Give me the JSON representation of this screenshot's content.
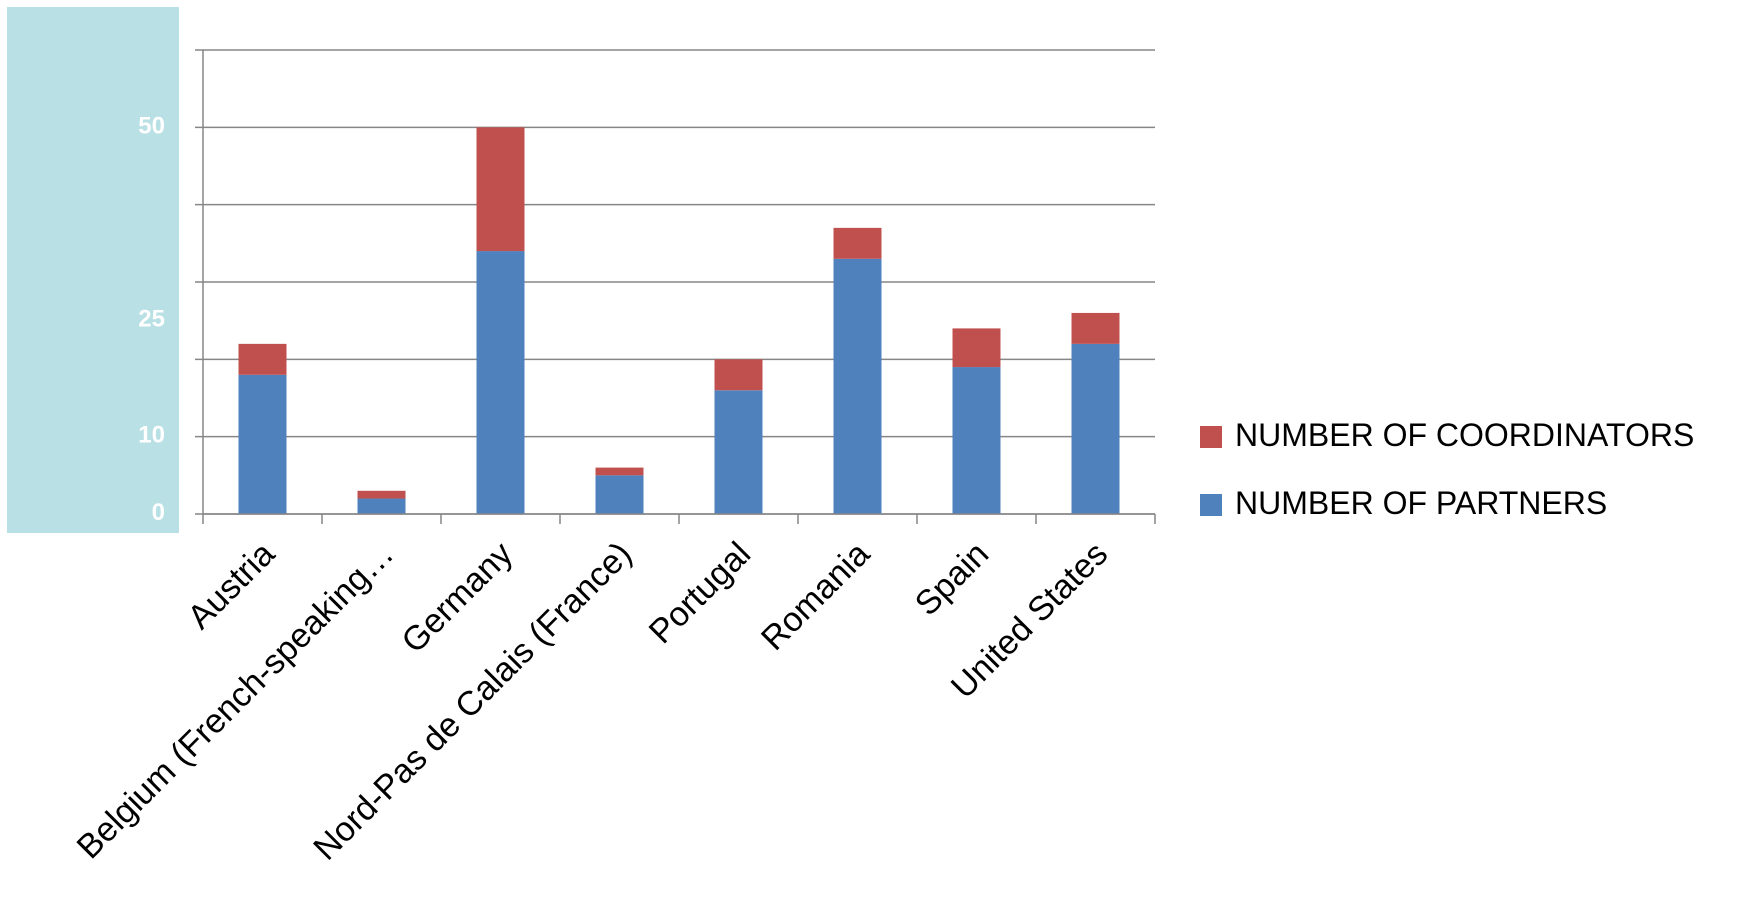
{
  "chart_data": {
    "type": "bar",
    "stacked": true,
    "categories": [
      "Austria",
      "Belgium (French-speaking…",
      "Germany",
      "Nord-Pas de Calais (France)",
      "Portugal",
      "Romania",
      "Spain",
      "United States"
    ],
    "series": [
      {
        "name": "NUMBER OF PARTNERS",
        "color": "#4f81bd",
        "values": [
          18,
          2,
          34,
          5,
          16,
          33,
          19,
          22
        ]
      },
      {
        "name": "NUMBER OF COORDINATORS",
        "color": "#c0504d",
        "values": [
          4,
          1,
          16,
          1,
          4,
          4,
          5,
          4
        ]
      }
    ],
    "ylim": [
      0,
      60
    ],
    "yticks": [
      "0",
      "10",
      "25",
      "50"
    ],
    "ytick_values": [
      0,
      10,
      25,
      50
    ],
    "gridlines": [
      0,
      10,
      20,
      30,
      40,
      50,
      60
    ],
    "grid": true,
    "legend_position": "right",
    "legend_order": [
      "NUMBER OF COORDINATORS",
      "NUMBER OF PARTNERS"
    ],
    "axis_panel_color": "#b9e0e4",
    "gridline_color": "#868686"
  }
}
